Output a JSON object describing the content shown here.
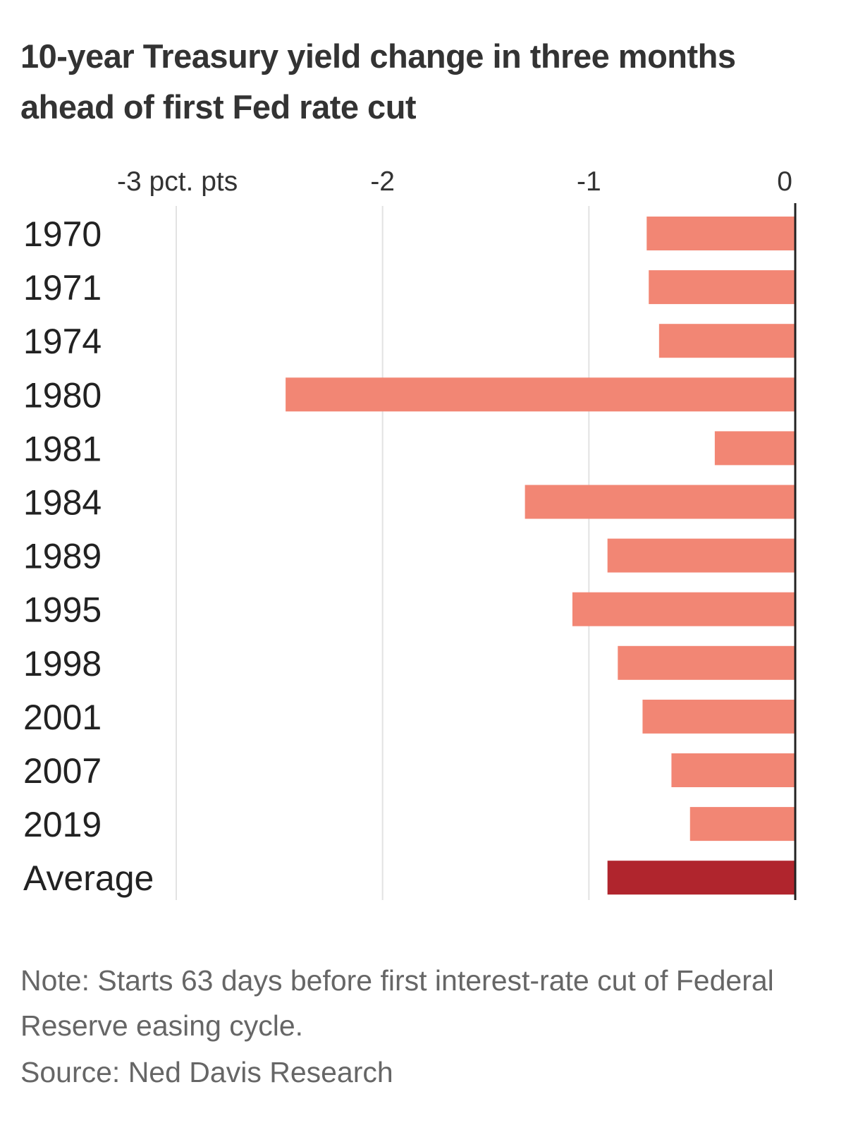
{
  "chart_data": {
    "type": "bar",
    "orientation": "horizontal",
    "title": "10-year Treasury yield change in three months ahead of first Fed rate cut",
    "categories": [
      "1970",
      "1971",
      "1974",
      "1980",
      "1981",
      "1984",
      "1989",
      "1995",
      "1998",
      "2001",
      "2007",
      "2019",
      "Average"
    ],
    "values": [
      -0.72,
      -0.71,
      -0.66,
      -2.47,
      -0.39,
      -1.31,
      -0.91,
      -1.08,
      -0.86,
      -0.74,
      -0.6,
      -0.51,
      -0.91
    ],
    "x_ticks": [
      -3,
      -2,
      -1,
      0
    ],
    "x_tick_labels": [
      "-3 pct. pts",
      "-2",
      "-1",
      "0"
    ],
    "xlim": [
      -3,
      0
    ],
    "xlabel": "",
    "ylabel": "",
    "grid": true,
    "legend": "none",
    "colors": {
      "bar": "#f28674",
      "average_bar": "#b0252d",
      "grid": "#e2e2e2",
      "baseline": "#222222"
    }
  },
  "footnotes": {
    "note": "Note: Starts 63 days before first interest-rate cut of Federal Reserve easing cycle.",
    "source": "Source: Ned Davis Research"
  }
}
